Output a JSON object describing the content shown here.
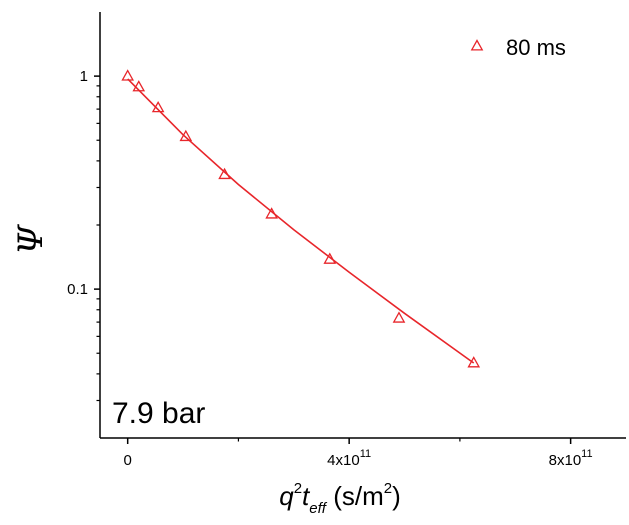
{
  "chart_data": {
    "type": "scatter",
    "title": "",
    "xlabel": "q²t_eff (s/m²)",
    "ylabel": "Ψ",
    "xscale": "linear",
    "yscale": "log",
    "xlim": [
      -50000000000.0,
      900000000000.0
    ],
    "ylim": [
      0.02,
      2.0
    ],
    "x_ticks": [
      {
        "value": 0,
        "base": "0",
        "exp": ""
      },
      {
        "value": 400000000000.0,
        "base": "4x10",
        "exp": "11"
      },
      {
        "value": 800000000000.0,
        "base": "8x10",
        "exp": "11"
      }
    ],
    "y_ticks": [
      {
        "value": 1,
        "label": "1"
      },
      {
        "value": 0.1,
        "label": "0.1"
      }
    ],
    "grid": false,
    "legend": {
      "position": "top-right"
    },
    "annotation": "7.9 bar",
    "color": "#e8262b",
    "series": [
      {
        "name": "80 ms",
        "marker": "triangle-open",
        "x": [
          0,
          20000000000.0,
          55000000000.0,
          105000000000.0,
          175000000000.0,
          260000000000.0,
          365000000000.0,
          490000000000.0,
          625000000000.0
        ],
        "y": [
          1.0,
          0.89,
          0.71,
          0.52,
          0.345,
          0.225,
          0.138,
          0.073,
          0.045
        ],
        "fit": {
          "x": [
            0,
            100000000000.0,
            200000000000.0,
            300000000000.0,
            400000000000.0,
            500000000000.0,
            625000000000.0
          ],
          "y": [
            0.97,
            0.53,
            0.31,
            0.19,
            0.12,
            0.077,
            0.045
          ]
        }
      }
    ]
  }
}
